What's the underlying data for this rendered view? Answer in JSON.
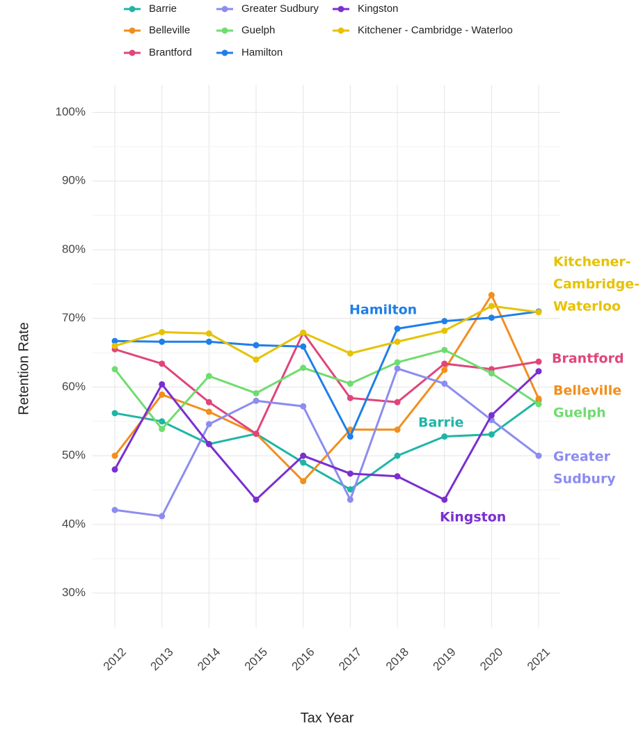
{
  "chart_data": {
    "type": "line",
    "x_label": "Tax Year",
    "y_label": "Retention Rate",
    "categories": [
      "2012",
      "2013",
      "2014",
      "2015",
      "2016",
      "2017",
      "2018",
      "2019",
      "2020",
      "2021"
    ],
    "ylim": [
      25,
      104
    ],
    "yticks": [
      {
        "value": 30,
        "label": "30%"
      },
      {
        "value": 40,
        "label": "40%"
      },
      {
        "value": 50,
        "label": "50%"
      },
      {
        "value": 60,
        "label": "60%"
      },
      {
        "value": 70,
        "label": "70%"
      },
      {
        "value": 80,
        "label": "80%"
      },
      {
        "value": 90,
        "label": "90%"
      },
      {
        "value": 100,
        "label": "100%"
      }
    ],
    "yminorticks": [
      35,
      45,
      55,
      65,
      75,
      85,
      95
    ],
    "grid": true,
    "legend": "top",
    "series": [
      {
        "name": "Barrie",
        "color": "#1fb5a6",
        "values": [
          56.2,
          55.0,
          51.7,
          53.2,
          49.0,
          45.1,
          50.0,
          52.8,
          53.1,
          58.1
        ]
      },
      {
        "name": "Belleville",
        "color": "#f28e1c",
        "values": [
          50.0,
          58.9,
          56.4,
          53.2,
          46.3,
          53.8,
          53.8,
          62.5,
          73.4,
          58.3
        ]
      },
      {
        "name": "Brantford",
        "color": "#e0457b",
        "values": [
          65.5,
          63.4,
          57.8,
          53.2,
          67.9,
          58.4,
          57.8,
          63.4,
          62.6,
          63.7
        ]
      },
      {
        "name": "Greater Sudbury",
        "color": "#8c8cf0",
        "values": [
          42.1,
          41.2,
          54.6,
          58.0,
          57.2,
          43.6,
          62.7,
          60.5,
          55.2,
          50.0
        ]
      },
      {
        "name": "Guelph",
        "color": "#6fdc6f",
        "values": [
          62.6,
          53.9,
          61.6,
          59.1,
          62.8,
          60.5,
          63.6,
          65.4,
          62.0,
          57.5
        ]
      },
      {
        "name": "Hamilton",
        "color": "#1f7fe8",
        "values": [
          66.7,
          66.6,
          66.6,
          66.1,
          65.9,
          52.8,
          68.5,
          69.6,
          70.1,
          71.0
        ]
      },
      {
        "name": "Kingston",
        "color": "#7a2fd0",
        "values": [
          48.0,
          60.4,
          51.7,
          43.6,
          50.0,
          47.4,
          47.0,
          43.6,
          55.9,
          62.3
        ]
      },
      {
        "name": "Kitchener - Cambridge - Waterloo",
        "color": "#e6c200",
        "values": [
          66.0,
          68.0,
          67.8,
          64.0,
          67.9,
          64.9,
          66.6,
          68.2,
          71.8,
          70.9
        ]
      }
    ],
    "annotations": [
      {
        "lines": [
          "Kitchener-",
          "Cambridge-",
          "Waterloo"
        ]
      },
      {
        "lines": [
          "Hamilton"
        ]
      },
      {
        "lines": [
          "Brantford"
        ]
      },
      {
        "lines": [
          "Belleville"
        ]
      },
      {
        "lines": [
          "Guelph"
        ]
      },
      {
        "lines": [
          "Barrie"
        ]
      },
      {
        "lines": [
          "Greater",
          "Sudbury"
        ]
      },
      {
        "lines": [
          "Kingston"
        ]
      }
    ]
  }
}
